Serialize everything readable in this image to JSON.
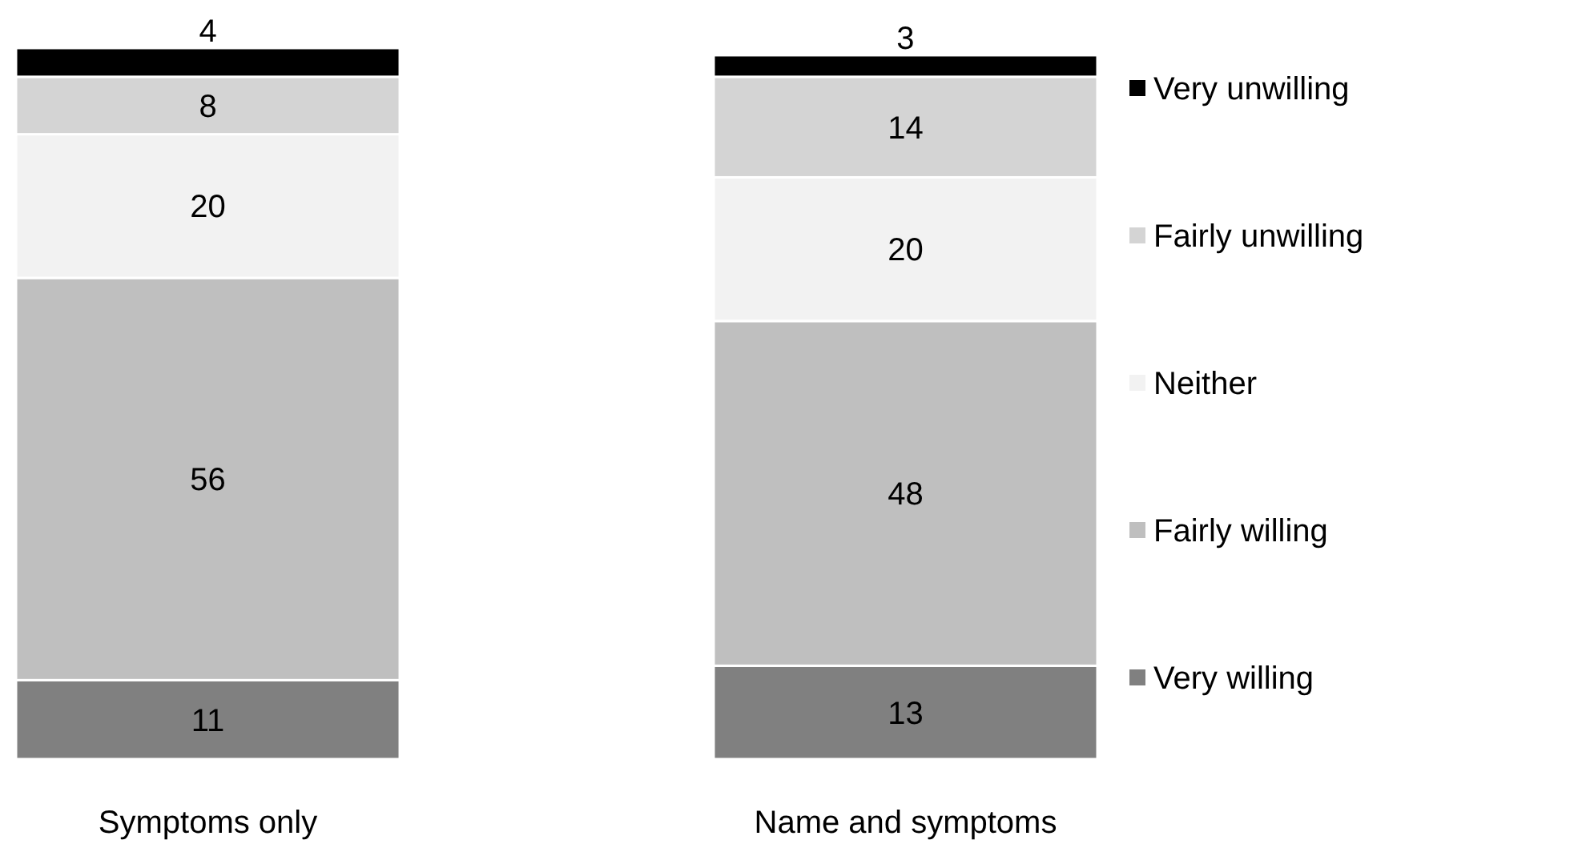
{
  "chart_data": {
    "type": "bar",
    "stacked": true,
    "categories": [
      "Symptoms only",
      "Name and symptoms"
    ],
    "series": [
      {
        "name": "Very willing",
        "color": "#808080",
        "values": [
          11,
          13
        ]
      },
      {
        "name": "Fairly willing",
        "color": "#bfbfbf",
        "values": [
          56,
          48
        ]
      },
      {
        "name": "Neither",
        "color": "#f2f2f2",
        "values": [
          20,
          20
        ]
      },
      {
        "name": "Fairly unwilling",
        "color": "#d4d4d4",
        "values": [
          8,
          14
        ]
      },
      {
        "name": "Very unwilling",
        "color": "#000000",
        "values": [
          4,
          3
        ]
      }
    ],
    "data_labels": true,
    "legend": "right",
    "relative": false
  }
}
